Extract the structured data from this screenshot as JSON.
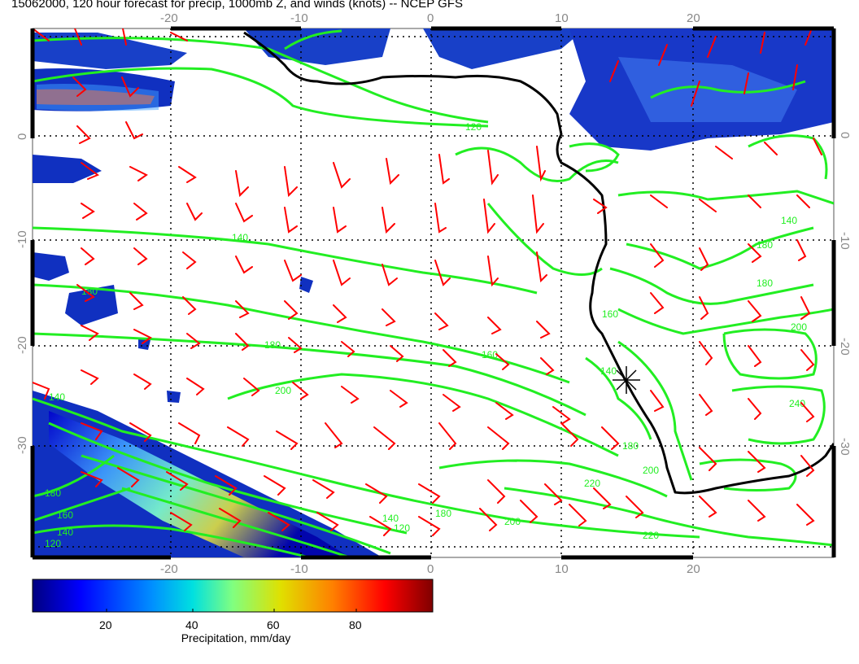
{
  "title": "15062000, 120 hour forecast for precip, 1000mb Z, and winds (knots) -- NCEP GFS",
  "lon_ticks": [
    "-20",
    "-10",
    "0",
    "10",
    "20"
  ],
  "lat_ticks": [
    "0",
    "-10",
    "-20",
    "-30"
  ],
  "contour_labels": [
    "120",
    "140",
    "160",
    "180",
    "200",
    "220",
    "240"
  ],
  "colorbar": {
    "title": "Precipitation, mm/day",
    "ticks": [
      "20",
      "40",
      "60",
      "80"
    ]
  },
  "colors": {
    "precip_scale": [
      "#00007f",
      "#0000ff",
      "#0090ff",
      "#00e0e0",
      "#80ff80",
      "#e0e000",
      "#ff8000",
      "#ff0000",
      "#7f0000"
    ],
    "contour": "#22ee22",
    "wind_barb": "#ff0000",
    "coastline": "#000000"
  },
  "marker": "star-cross"
}
